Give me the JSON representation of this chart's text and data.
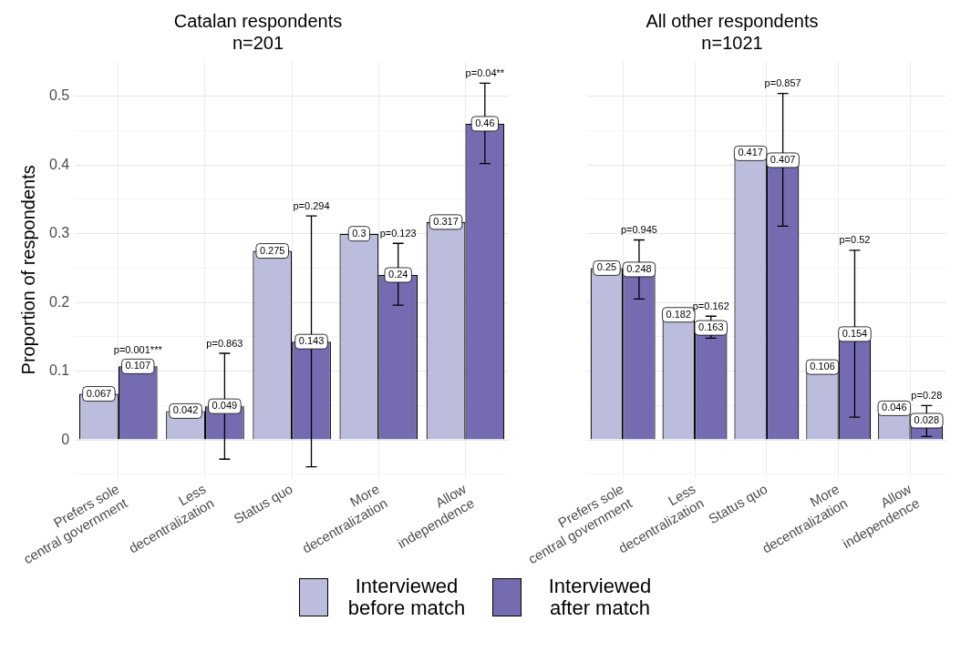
{
  "chart_data": [
    {
      "type": "bar",
      "title": "Catalan respondents",
      "subtitle": "n=201",
      "ylabel": "Proportion of respondents",
      "categories": [
        "Prefers sole central government",
        "Less decentralization",
        "Status quo",
        "More decentralization",
        "Allow independence"
      ],
      "series": [
        {
          "name": "Interviewed before match",
          "color": "#bcbddc",
          "values": [
            0.067,
            0.042,
            0.275,
            0.3,
            0.317
          ]
        },
        {
          "name": "Interviewed after match",
          "color": "#756bb1",
          "values": [
            0.107,
            0.049,
            0.143,
            0.24,
            0.46
          ],
          "errors": [
            null,
            [
              -0.028,
              0.126
            ],
            [
              -0.039,
              0.326
            ],
            [
              0.196,
              0.286
            ],
            [
              0.402,
              0.519
            ]
          ]
        }
      ],
      "annotations": [
        "p=0.001***",
        "p=0.863",
        "p=0.294",
        "p=0.123",
        "p=0.04**"
      ],
      "ylim": [
        -0.055,
        0.55
      ],
      "yticks": [
        {
          "value": -0.05,
          "label": null
        },
        0,
        {
          "value": 0.05,
          "label": null
        },
        0.1,
        {
          "value": 0.15,
          "label": null
        },
        0.2,
        {
          "value": 0.25,
          "label": null
        },
        0.3,
        {
          "value": 0.35,
          "label": null
        },
        0.4,
        {
          "value": 0.45,
          "label": null
        },
        0.5
      ],
      "grid": true,
      "data_labels": true,
      "legend": "bottom"
    },
    {
      "type": "bar",
      "title": "All other respondents",
      "subtitle": "n=1021",
      "categories": [
        "Prefers sole central government",
        "Less decentralization",
        "Status quo",
        "More decentralization",
        "Allow independence"
      ],
      "series": [
        {
          "color": "#bcbddc",
          "values": [
            0.25,
            0.182,
            0.417,
            0.106,
            0.046
          ]
        },
        {
          "color": "#756bb1",
          "values": [
            0.248,
            0.163,
            0.407,
            0.154,
            0.028
          ],
          "errors": [
            [
              0.205,
              0.291
            ],
            [
              0.148,
              0.18
            ],
            [
              0.311,
              0.504
            ],
            [
              0.033,
              0.276
            ],
            [
              0.005,
              0.05
            ]
          ]
        }
      ],
      "annotations": [
        "p=0.945",
        "p=0.162",
        "p=0.857",
        "p=0.52",
        "p=0.28"
      ],
      "ylim": [
        -0.055,
        0.55
      ],
      "yticks": [
        {
          "value": -0.05,
          "label": null
        },
        0,
        {
          "value": 0.05,
          "label": null
        },
        0.1,
        {
          "value": 0.15,
          "label": null
        },
        0.2,
        {
          "value": 0.25,
          "label": null
        },
        0.3,
        {
          "value": 0.35,
          "label": null
        },
        0.4,
        {
          "value": 0.45,
          "label": null
        },
        0.5
      ],
      "grid": true,
      "data_labels": true,
      "tick_labels": "x"
    }
  ]
}
